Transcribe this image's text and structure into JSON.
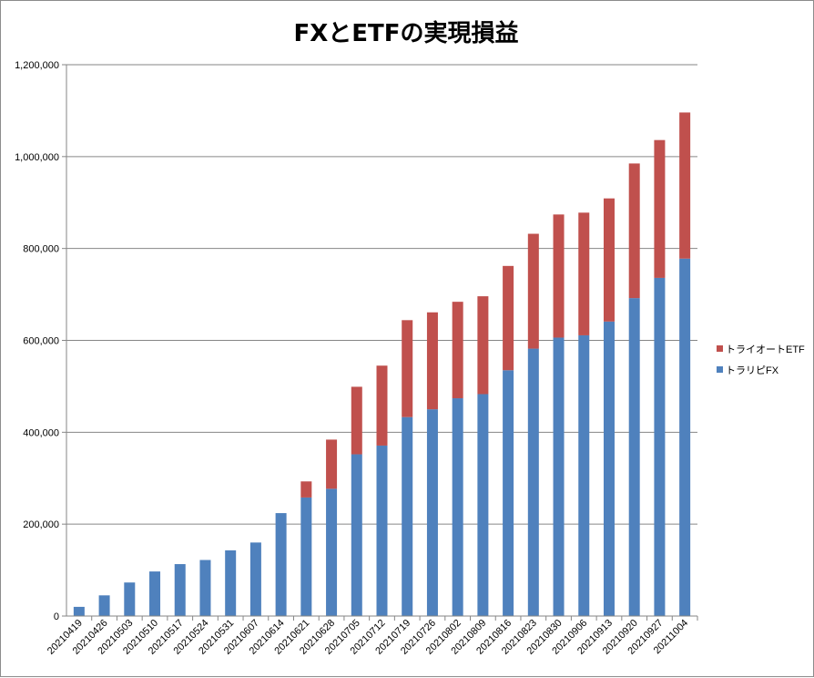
{
  "chart_data": {
    "type": "bar",
    "stacked": true,
    "title": "FXとETFの実現損益",
    "xlabel": "",
    "ylabel": "",
    "ylim": [
      0,
      1200000
    ],
    "yticks": [
      "0",
      "200,000",
      "400,000",
      "600,000",
      "800,000",
      "1,000,000",
      "1,200,000"
    ],
    "ytick_values": [
      0,
      200000,
      400000,
      600000,
      800000,
      1000000,
      1200000
    ],
    "grid": true,
    "legend_position": "right",
    "categories": [
      "20210419",
      "20210426",
      "20210503",
      "20210510",
      "20210517",
      "20210524",
      "20210531",
      "20210607",
      "20210614",
      "20210621",
      "20210628",
      "20210705",
      "20210712",
      "20210719",
      "20210726",
      "20210802",
      "20210809",
      "20210816",
      "20210823",
      "20210830",
      "20210906",
      "20210913",
      "20210920",
      "20210927",
      "20211004"
    ],
    "series": [
      {
        "name": "トラリピFX",
        "color": "#4f81bd",
        "values": [
          20000,
          45000,
          73000,
          97000,
          113000,
          122000,
          143000,
          160000,
          224000,
          258000,
          277000,
          352000,
          371000,
          433000,
          450000,
          474000,
          483000,
          535000,
          582000,
          606000,
          611000,
          641000,
          692000,
          736000,
          778000
        ]
      },
      {
        "name": "トライオートETF",
        "color": "#c0504d",
        "values": [
          0,
          0,
          0,
          0,
          0,
          0,
          0,
          0,
          0,
          35000,
          107000,
          147000,
          174000,
          211000,
          211000,
          210000,
          213000,
          227000,
          250000,
          268000,
          267000,
          268000,
          293000,
          300000,
          318000
        ]
      }
    ],
    "legend_order": [
      "トライオートETF",
      "トラリピFX"
    ]
  },
  "colors": {
    "grid": "#868686",
    "axis": "#868686",
    "background": "#ffffff"
  }
}
